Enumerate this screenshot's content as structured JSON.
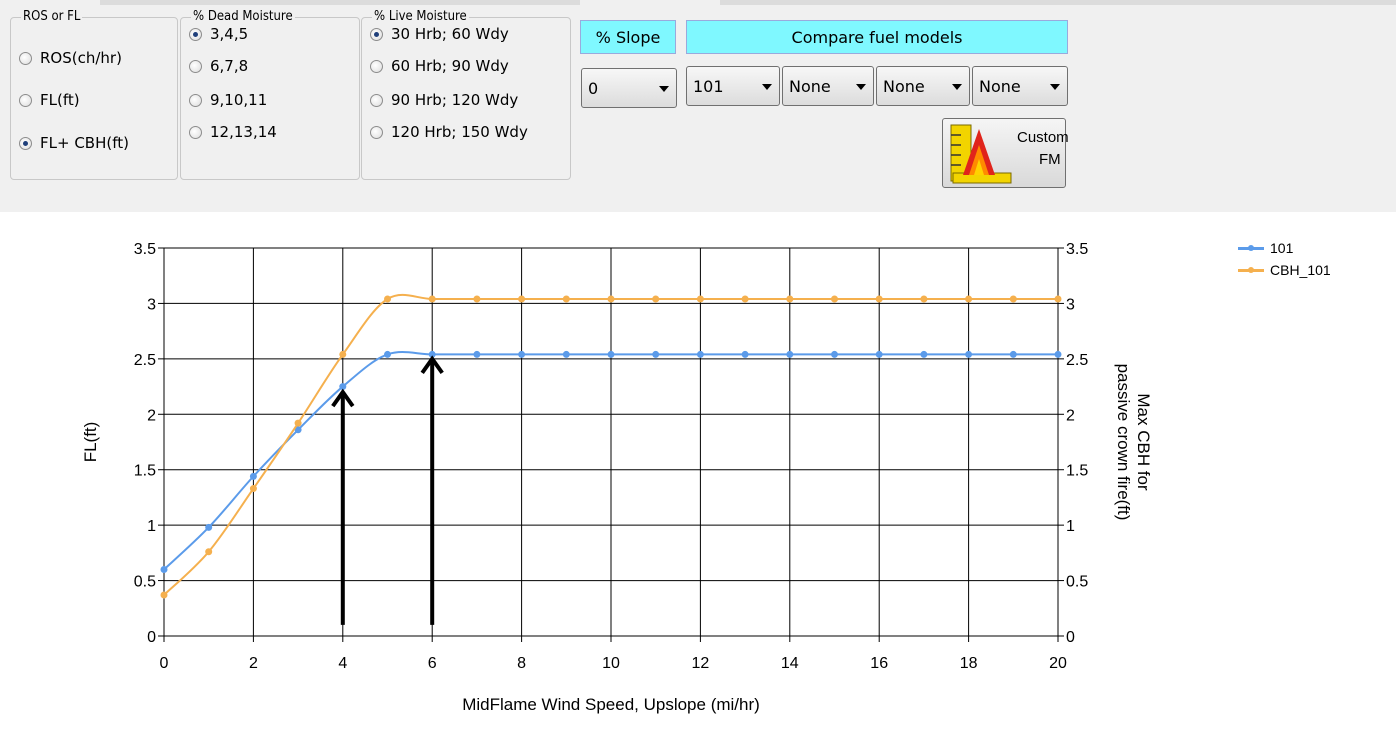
{
  "ros_fl_group": {
    "title": "ROS or FL",
    "options": [
      {
        "label": "ROS(ch/hr)",
        "selected": false
      },
      {
        "label": "FL(ft)",
        "selected": false
      },
      {
        "label": "FL+ CBH(ft)",
        "selected": true
      }
    ]
  },
  "dead_moisture_group": {
    "title": "% Dead Moisture",
    "options": [
      {
        "label": "3,4,5",
        "selected": true
      },
      {
        "label": "6,7,8",
        "selected": false
      },
      {
        "label": "9,10,11",
        "selected": false
      },
      {
        "label": "12,13,14",
        "selected": false
      }
    ]
  },
  "live_moisture_group": {
    "title": "% Live Moisture",
    "options": [
      {
        "label": "30 Hrb; 60 Wdy",
        "selected": true
      },
      {
        "label": "60 Hrb; 90 Wdy",
        "selected": false
      },
      {
        "label": "90 Hrb; 120 Wdy",
        "selected": false
      },
      {
        "label": "120 Hrb; 150 Wdy",
        "selected": false
      }
    ]
  },
  "slope": {
    "label": "% Slope",
    "value": "0"
  },
  "fuel_models": {
    "label": "Compare fuel models",
    "selections": [
      "101",
      "None",
      "None",
      "None"
    ]
  },
  "custom_fm": {
    "line1": "Custom",
    "line2": "FM",
    "icon": "custom-fuel-model-icon"
  },
  "chart_data": {
    "type": "line",
    "xlabel": "MidFlame Wind Speed, Upslope (mi/hr)",
    "ylabel": "FL(ft)",
    "ylabel_right": "Max CBH for passive crown fire(ft)",
    "xlim": [
      0,
      20
    ],
    "ylim": [
      0,
      3.5
    ],
    "x_ticks": [
      "0",
      "2",
      "4",
      "6",
      "8",
      "10",
      "12",
      "14",
      "16",
      "18",
      "20"
    ],
    "y_ticks": [
      "0",
      "0.5",
      "1",
      "1.5",
      "2",
      "2.5",
      "3",
      "3.5"
    ],
    "grid": true,
    "legend_position": "top-right",
    "x": [
      0,
      1,
      2,
      3,
      4,
      5,
      6,
      7,
      8,
      9,
      10,
      11,
      12,
      13,
      14,
      15,
      16,
      17,
      18,
      19,
      20
    ],
    "series": [
      {
        "name": "101",
        "color": "#5b9bea",
        "values": [
          0.6,
          0.98,
          1.44,
          1.86,
          2.25,
          2.54,
          2.54,
          2.54,
          2.54,
          2.54,
          2.54,
          2.54,
          2.54,
          2.54,
          2.54,
          2.54,
          2.54,
          2.54,
          2.54,
          2.54,
          2.54
        ]
      },
      {
        "name": "CBH_101",
        "color": "#f5b04e",
        "values": [
          0.37,
          0.76,
          1.33,
          1.92,
          2.54,
          3.04,
          3.04,
          3.04,
          3.04,
          3.04,
          3.04,
          3.04,
          3.04,
          3.04,
          3.04,
          3.04,
          3.04,
          3.04,
          3.04,
          3.04,
          3.04
        ]
      }
    ],
    "annotations": [
      {
        "type": "arrow",
        "x": 4,
        "y_from": 0.1,
        "y_to": 2.2
      },
      {
        "type": "arrow",
        "x": 6,
        "y_from": 0.1,
        "y_to": 2.5
      }
    ]
  }
}
